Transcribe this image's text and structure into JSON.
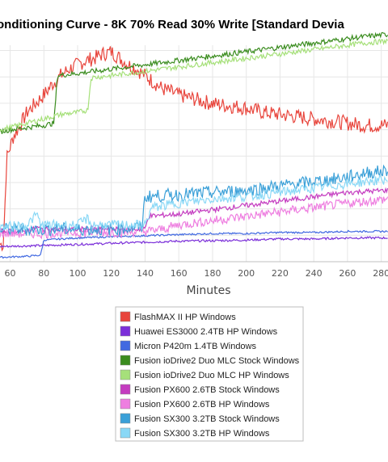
{
  "chart_data": {
    "type": "line",
    "title": "onditioning Curve - 8K 70% Read 30% Write [Standard Devia",
    "xlabel": "Minutes",
    "ylabel": "",
    "x_ticks": [
      "60",
      "80",
      "100",
      "120",
      "140",
      "160",
      "180",
      "200",
      "220",
      "240",
      "260",
      "280"
    ],
    "xlim": [
      54,
      284
    ],
    "ylim": [
      0,
      10
    ],
    "grid": true,
    "legend_position": "bottom-center",
    "series": [
      {
        "name": "FlashMAX II HP Windows",
        "color": "#e8453c",
        "points": [
          [
            54,
            0.8
          ],
          [
            56,
            0.8
          ],
          [
            58,
            4.8
          ],
          [
            62,
            5.8
          ],
          [
            66,
            6.3
          ],
          [
            70,
            6.9
          ],
          [
            75,
            7.3
          ],
          [
            80,
            7.7
          ],
          [
            85,
            8.2
          ],
          [
            90,
            8.6
          ],
          [
            95,
            8.9
          ],
          [
            100,
            9.1
          ],
          [
            105,
            9.3
          ],
          [
            110,
            9.4
          ],
          [
            115,
            9.6
          ],
          [
            120,
            9.7
          ],
          [
            125,
            9.4
          ],
          [
            130,
            9.1
          ],
          [
            135,
            8.9
          ],
          [
            140,
            8.6
          ],
          [
            145,
            8.3
          ],
          [
            150,
            8.0
          ],
          [
            160,
            7.7
          ],
          [
            170,
            7.5
          ],
          [
            180,
            7.3
          ],
          [
            190,
            7.2
          ],
          [
            200,
            7.1
          ],
          [
            210,
            6.9
          ],
          [
            220,
            6.8
          ],
          [
            230,
            6.7
          ],
          [
            240,
            6.6
          ],
          [
            250,
            6.5
          ],
          [
            260,
            6.4
          ],
          [
            270,
            6.3
          ],
          [
            284,
            6.3
          ]
        ]
      },
      {
        "name": "Huawei ES3000 2.4TB HP Windows",
        "color": "#7b2fd9",
        "points": [
          [
            54,
            0.7
          ],
          [
            80,
            0.75
          ],
          [
            100,
            0.8
          ],
          [
            120,
            0.85
          ],
          [
            140,
            0.9
          ],
          [
            160,
            0.95
          ],
          [
            180,
            0.97
          ],
          [
            200,
            1.0
          ],
          [
            220,
            1.05
          ],
          [
            240,
            1.05
          ],
          [
            260,
            1.1
          ],
          [
            284,
            1.1
          ]
        ]
      },
      {
        "name": "Micron P420m 1.4TB Windows",
        "color": "#4169e1",
        "points": [
          [
            54,
            0.2
          ],
          [
            70,
            0.25
          ],
          [
            78,
            0.3
          ],
          [
            80,
            1.0
          ],
          [
            100,
            1.1
          ],
          [
            120,
            1.15
          ],
          [
            140,
            1.2
          ],
          [
            160,
            1.25
          ],
          [
            180,
            1.3
          ],
          [
            200,
            1.3
          ],
          [
            220,
            1.35
          ],
          [
            240,
            1.35
          ],
          [
            260,
            1.4
          ],
          [
            284,
            1.4
          ]
        ]
      },
      {
        "name": "Fusion ioDrive2 Duo MLC Stock Windows",
        "color": "#3a8c1e",
        "points": [
          [
            54,
            6.0
          ],
          [
            60,
            6.1
          ],
          [
            70,
            6.2
          ],
          [
            80,
            6.3
          ],
          [
            86,
            6.4
          ],
          [
            88,
            8.6
          ],
          [
            100,
            8.7
          ],
          [
            110,
            8.8
          ],
          [
            120,
            8.9
          ],
          [
            130,
            9.0
          ],
          [
            140,
            9.1
          ],
          [
            150,
            9.2
          ],
          [
            160,
            9.3
          ],
          [
            170,
            9.4
          ],
          [
            180,
            9.5
          ],
          [
            190,
            9.6
          ],
          [
            200,
            9.7
          ],
          [
            210,
            9.8
          ],
          [
            220,
            9.9
          ],
          [
            230,
            10.0
          ],
          [
            240,
            10.1
          ],
          [
            250,
            10.2
          ],
          [
            260,
            10.3
          ],
          [
            270,
            10.4
          ],
          [
            284,
            10.5
          ]
        ]
      },
      {
        "name": "Fusion ioDrive2 Duo MLC HP Windows",
        "color": "#a6e07a",
        "points": [
          [
            54,
            6.1
          ],
          [
            60,
            6.2
          ],
          [
            70,
            6.4
          ],
          [
            80,
            6.6
          ],
          [
            90,
            6.8
          ],
          [
            100,
            6.9
          ],
          [
            106,
            7.0
          ],
          [
            108,
            8.5
          ],
          [
            120,
            8.6
          ],
          [
            130,
            8.7
          ],
          [
            140,
            8.8
          ],
          [
            150,
            8.9
          ],
          [
            160,
            9.0
          ],
          [
            170,
            9.1
          ],
          [
            180,
            9.2
          ],
          [
            190,
            9.3
          ],
          [
            200,
            9.4
          ],
          [
            210,
            9.5
          ],
          [
            220,
            9.6
          ],
          [
            230,
            9.7
          ],
          [
            240,
            9.8
          ],
          [
            250,
            9.9
          ],
          [
            260,
            10.0
          ],
          [
            270,
            10.1
          ],
          [
            284,
            10.2
          ]
        ]
      },
      {
        "name": "Fusion PX600 2.6TB Stock Windows",
        "color": "#c43cc0",
        "points": [
          [
            54,
            1.4
          ],
          [
            70,
            1.4
          ],
          [
            74,
            1.5
          ],
          [
            76,
            1.6
          ],
          [
            78,
            1.5
          ],
          [
            100,
            1.5
          ],
          [
            120,
            1.5
          ],
          [
            140,
            1.5
          ],
          [
            142,
            2.1
          ],
          [
            160,
            2.2
          ],
          [
            180,
            2.4
          ],
          [
            200,
            2.6
          ],
          [
            220,
            2.8
          ],
          [
            240,
            3.0
          ],
          [
            260,
            3.2
          ],
          [
            284,
            3.3
          ]
        ]
      },
      {
        "name": "Fusion PX600 2.6TB HP Windows",
        "color": "#ee7ee0",
        "points": [
          [
            54,
            1.3
          ],
          [
            80,
            1.3
          ],
          [
            100,
            1.35
          ],
          [
            120,
            1.35
          ],
          [
            140,
            1.4
          ],
          [
            150,
            1.5
          ],
          [
            160,
            1.7
          ],
          [
            180,
            1.9
          ],
          [
            200,
            2.1
          ],
          [
            220,
            2.3
          ],
          [
            240,
            2.5
          ],
          [
            260,
            2.7
          ],
          [
            284,
            2.9
          ]
        ]
      },
      {
        "name": "Fusion SX300 3.2TB Stock Windows",
        "color": "#3ba0d8",
        "points": [
          [
            54,
            1.5
          ],
          [
            80,
            1.5
          ],
          [
            100,
            1.5
          ],
          [
            120,
            1.5
          ],
          [
            138,
            1.6
          ],
          [
            140,
            3.0
          ],
          [
            160,
            3.1
          ],
          [
            180,
            3.2
          ],
          [
            200,
            3.3
          ],
          [
            220,
            3.5
          ],
          [
            240,
            3.7
          ],
          [
            260,
            3.9
          ],
          [
            270,
            4.1
          ],
          [
            284,
            4.2
          ]
        ]
      },
      {
        "name": "Fusion SX300 3.2TB HP Windows",
        "color": "#8ad8f6",
        "points": [
          [
            54,
            1.6
          ],
          [
            70,
            1.7
          ],
          [
            76,
            2.2
          ],
          [
            78,
            1.7
          ],
          [
            100,
            1.7
          ],
          [
            106,
            2.0
          ],
          [
            108,
            1.7
          ],
          [
            120,
            1.7
          ],
          [
            140,
            1.7
          ],
          [
            144,
            2.5
          ],
          [
            160,
            2.7
          ],
          [
            180,
            2.9
          ],
          [
            200,
            3.0
          ],
          [
            220,
            3.2
          ],
          [
            240,
            3.4
          ],
          [
            260,
            3.6
          ],
          [
            284,
            3.8
          ]
        ]
      }
    ]
  }
}
